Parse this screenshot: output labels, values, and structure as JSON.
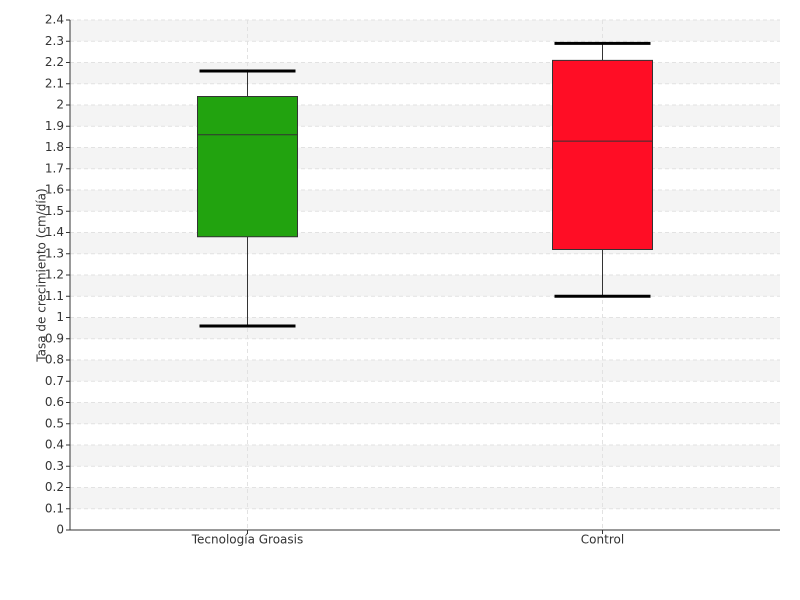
{
  "chart_data": {
    "type": "box",
    "y_label": "Tasa de crecimiento (cm/día)",
    "categories": [
      "Tecnología Groasis",
      "Control"
    ],
    "boxes": [
      {
        "min": 0.96,
        "q1": 1.38,
        "median": 1.86,
        "q3": 2.04,
        "max": 2.16,
        "color": "#22a30f"
      },
      {
        "min": 1.1,
        "q1": 1.32,
        "median": 1.83,
        "q3": 2.21,
        "max": 2.29,
        "color": "#ff0d25"
      }
    ],
    "ylim": [
      0,
      2.4
    ],
    "yticks": [
      0,
      0.1,
      0.2,
      0.3,
      0.4,
      0.5,
      0.6,
      0.7,
      0.8,
      0.9,
      1,
      1.1,
      1.2,
      1.3,
      1.4,
      1.5,
      1.6,
      1.7,
      1.8,
      1.9,
      2,
      2.1,
      2.2,
      2.3,
      2.4
    ],
    "grid": true
  }
}
